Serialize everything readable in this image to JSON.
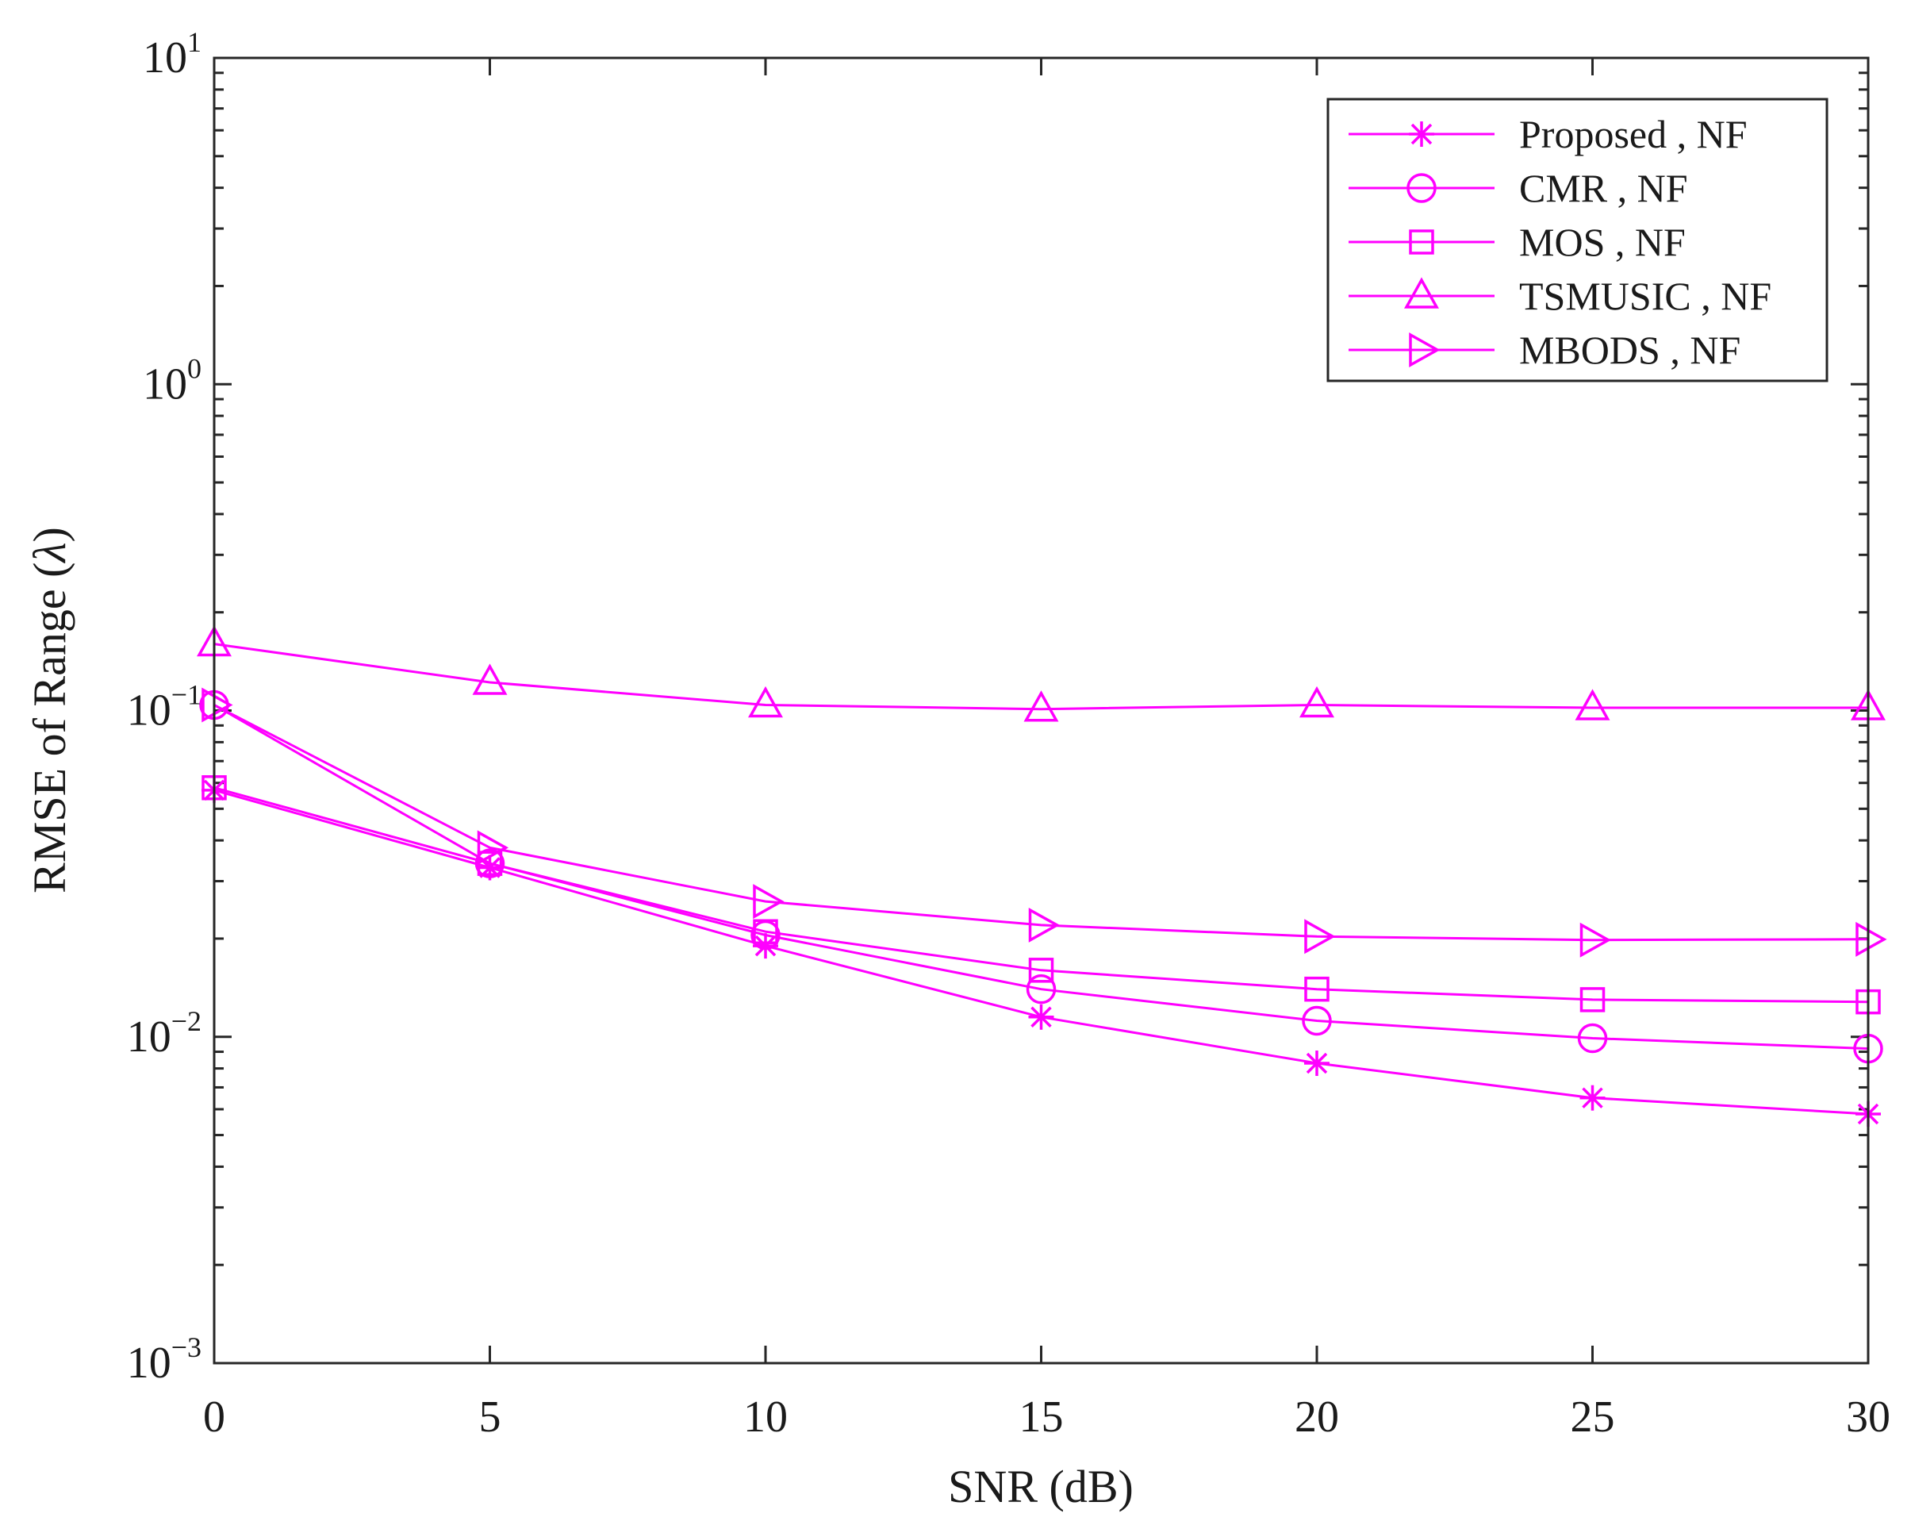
{
  "chart_data": {
    "type": "line",
    "title": "",
    "xlabel": "SNR (dB)",
    "ylabel_main": "RMSE  of  Range (",
    "ylabel_symbol": "λ",
    "ylabel_close": ")",
    "yscale": "log",
    "xlim": [
      0,
      30
    ],
    "ylim": [
      0.001,
      10
    ],
    "grid": false,
    "legend_position": "top-right",
    "line_color": "#ff00ff",
    "x": [
      0,
      5,
      10,
      15,
      20,
      25,
      30
    ],
    "x_ticks": [
      "0",
      "5",
      "10",
      "15",
      "20",
      "25",
      "30"
    ],
    "y_ticks": [
      {
        "value": 10,
        "base": "10",
        "exp": "1"
      },
      {
        "value": 1,
        "base": "10",
        "exp": "0"
      },
      {
        "value": 0.1,
        "base": "10",
        "exp": "−1"
      },
      {
        "value": 0.01,
        "base": "10",
        "exp": "−2"
      },
      {
        "value": 0.001,
        "base": "10",
        "exp": "−3"
      }
    ],
    "series": [
      {
        "name": "Proposed , NF",
        "marker": "asterisk",
        "values": [
          0.057,
          0.033,
          0.019,
          0.0115,
          0.0083,
          0.0065,
          0.0058
        ]
      },
      {
        "name": "CMR , NF",
        "marker": "circle",
        "values": [
          0.104,
          0.034,
          0.0205,
          0.014,
          0.0112,
          0.0099,
          0.0092
        ]
      },
      {
        "name": "MOS , NF",
        "marker": "square",
        "values": [
          0.058,
          0.034,
          0.021,
          0.016,
          0.014,
          0.013,
          0.0128
        ]
      },
      {
        "name": "TSMUSIC , NF",
        "marker": "triangle-up",
        "values": [
          0.16,
          0.122,
          0.104,
          0.101,
          0.104,
          0.102,
          0.102
        ]
      },
      {
        "name": "MBODS , NF",
        "marker": "triangle-right",
        "values": [
          0.104,
          0.038,
          0.026,
          0.022,
          0.0203,
          0.0198,
          0.0199
        ]
      }
    ]
  }
}
